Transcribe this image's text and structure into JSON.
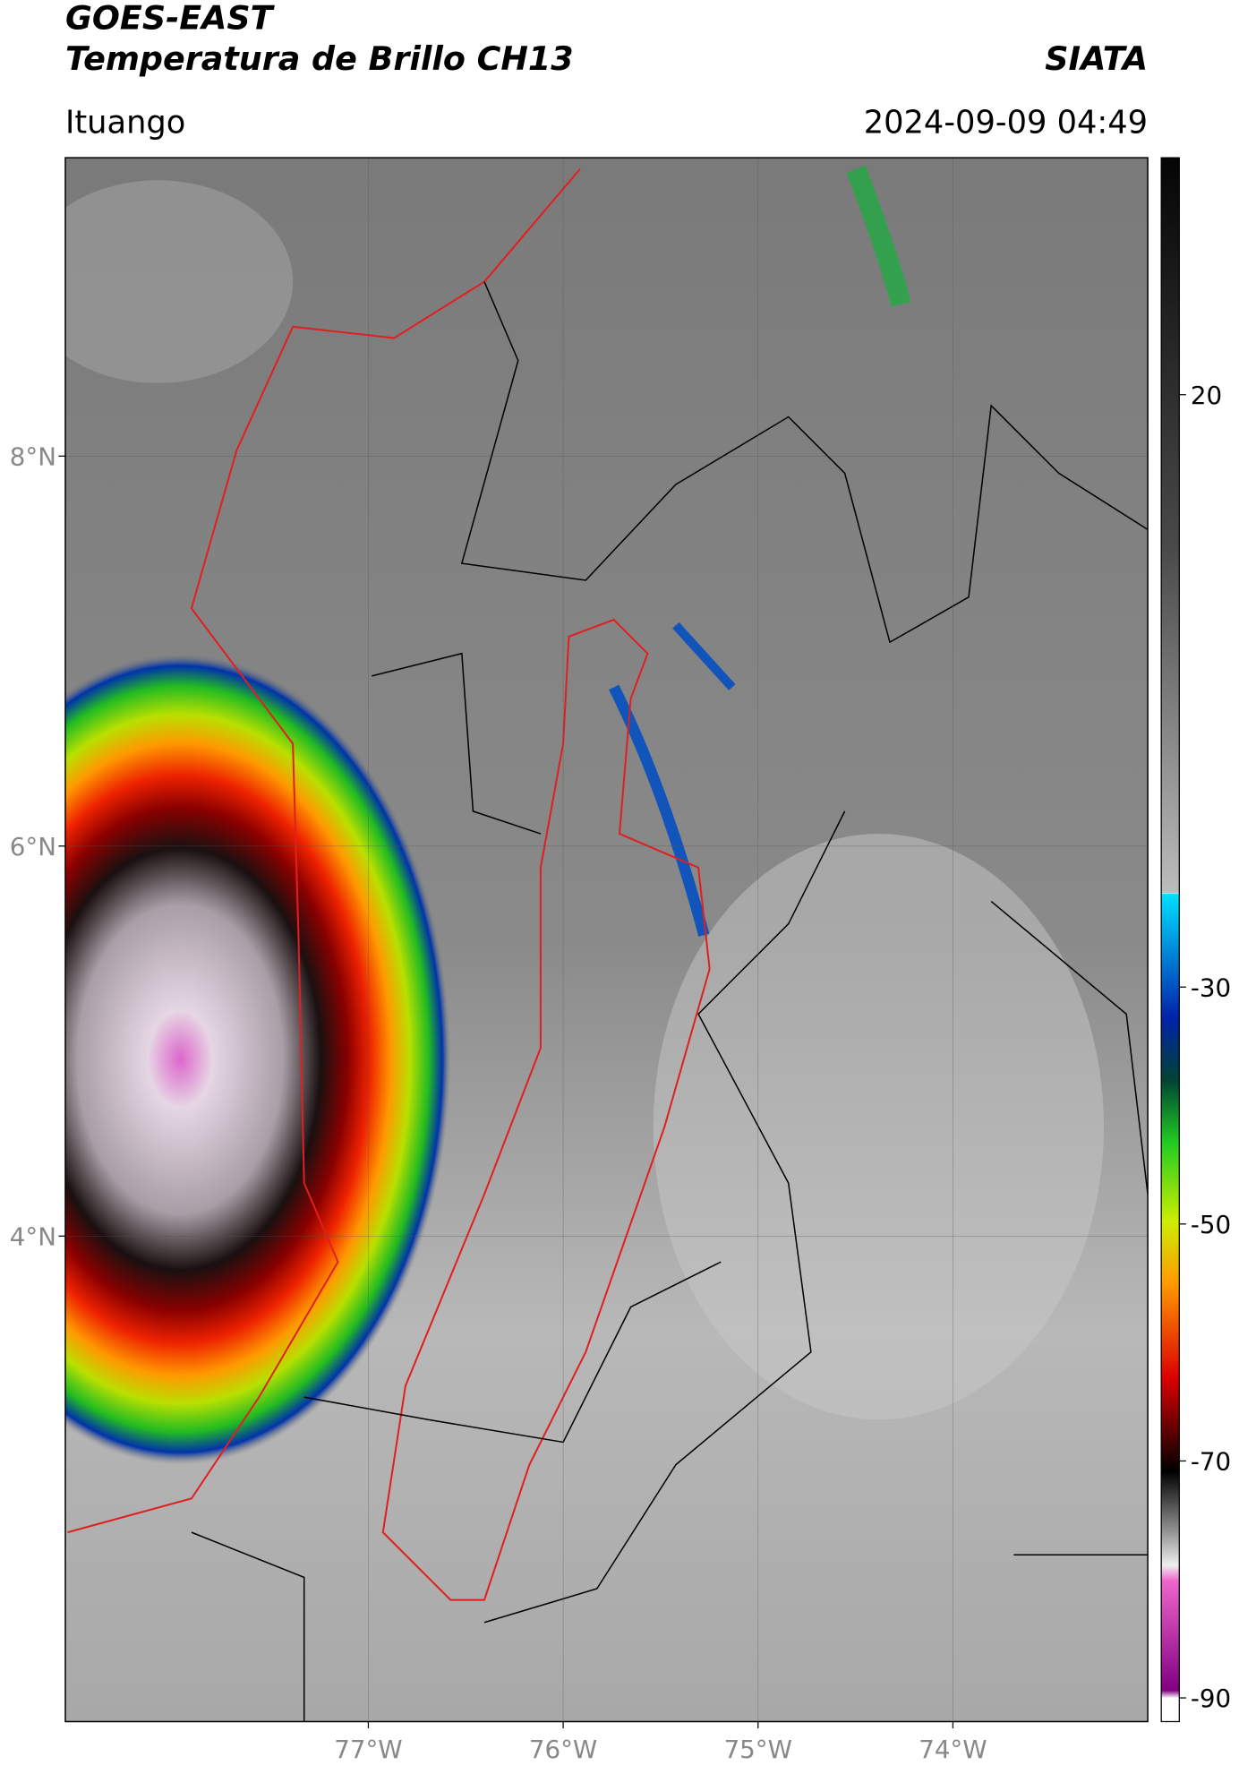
{
  "header": {
    "title": "GOES-EAST",
    "subtitle": "Temperatura de Brillo CH13",
    "source": "SIATA",
    "location": "Ituango",
    "datetime": "2024-09-09 04:49"
  },
  "map": {
    "xlim": [
      -78.555,
      -73.0
    ],
    "ylim": [
      1.51,
      9.53
    ],
    "xticks": [
      {
        "value": -77,
        "label": "77°W"
      },
      {
        "value": -76,
        "label": "76°W"
      },
      {
        "value": -75,
        "label": "75°W"
      },
      {
        "value": -74,
        "label": "74°W"
      }
    ],
    "yticks": [
      {
        "value": 8,
        "label": "8°N"
      },
      {
        "value": 6,
        "label": "6°N"
      },
      {
        "value": 4,
        "label": "4°N"
      }
    ]
  },
  "colorbar": {
    "lim": [
      -92,
      40
    ],
    "ticks": [
      20,
      -30,
      -50,
      -70,
      -90
    ]
  }
}
